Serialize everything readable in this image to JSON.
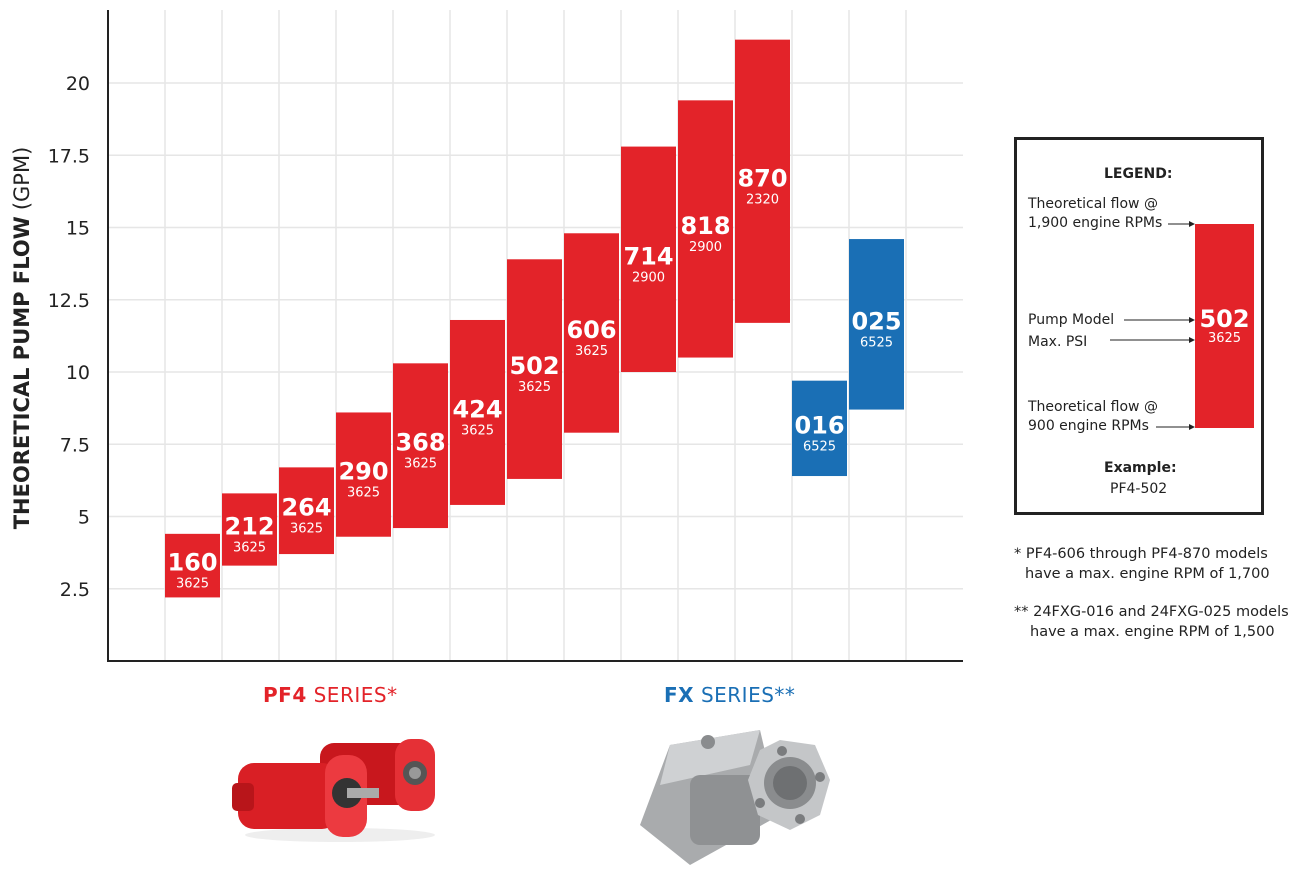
{
  "colors": {
    "pf4": "#e32329",
    "fx": "#1a6fb5",
    "grid": "#e6e6e6",
    "axis": "#222222"
  },
  "chart_data": {
    "type": "bar",
    "subtype": "floating-range",
    "ylabel_bold": "THEORETICAL PUMP FLOW",
    "ylabel_unit": "(GPM)",
    "ylim": [
      0,
      22.5
    ],
    "yticks": [
      "2.5",
      "5",
      "7.5",
      "10",
      "12.5",
      "15",
      "17.5",
      "20"
    ],
    "grid": true,
    "series": [
      {
        "name": "PF4 SERIES*",
        "color": "#e32329",
        "bars": [
          {
            "model": "160",
            "psi": "3625",
            "low": 2.2,
            "high": 4.4
          },
          {
            "model": "212",
            "psi": "3625",
            "low": 3.3,
            "high": 5.8
          },
          {
            "model": "264",
            "psi": "3625",
            "low": 3.7,
            "high": 6.7
          },
          {
            "model": "290",
            "psi": "3625",
            "low": 4.3,
            "high": 8.6
          },
          {
            "model": "368",
            "psi": "3625",
            "low": 4.6,
            "high": 10.3
          },
          {
            "model": "424",
            "psi": "3625",
            "low": 5.4,
            "high": 11.8
          },
          {
            "model": "502",
            "psi": "3625",
            "low": 6.3,
            "high": 13.9
          },
          {
            "model": "606",
            "psi": "3625",
            "low": 7.9,
            "high": 14.8
          },
          {
            "model": "714",
            "psi": "2900",
            "low": 10.0,
            "high": 17.8
          },
          {
            "model": "818",
            "psi": "2900",
            "low": 10.5,
            "high": 19.4
          },
          {
            "model": "870",
            "psi": "2320",
            "low": 11.7,
            "high": 21.5
          }
        ]
      },
      {
        "name": "FX SERIES**",
        "color": "#1a6fb5",
        "bars": [
          {
            "model": "016",
            "psi": "6525",
            "low": 6.4,
            "high": 9.7
          },
          {
            "model": "025",
            "psi": "6525",
            "low": 8.7,
            "high": 14.6
          }
        ]
      }
    ]
  },
  "series_labels": {
    "pf4_bold": "PF4",
    "pf4_rest": "SERIES*",
    "fx_bold": "FX",
    "fx_rest": "SERIES**"
  },
  "legend": {
    "title": "LEGEND:",
    "top_label_line1": "Theoretical flow @",
    "top_label_line2": "1,900 engine RPMs",
    "model_label": "Pump Model",
    "psi_label": "Max. PSI",
    "bottom_label_line1": "Theoretical flow @",
    "bottom_label_line2": "900 engine RPMs",
    "sample_model": "502",
    "sample_psi": "3625",
    "example_title": "Example:",
    "example_value": "PF4-502"
  },
  "footnotes": {
    "note1_line1": "* PF4-606 through PF4-870 models",
    "note1_line2": "have a max. engine RPM of 1,700",
    "note2_line1": "** 24FXG-016 and 24FXG-025 models",
    "note2_line2": "have a max. engine RPM of 1,500"
  },
  "images": {
    "pf4_pump": "red-gear-pump-icon",
    "fx_pump": "silver-piston-pump-icon"
  }
}
